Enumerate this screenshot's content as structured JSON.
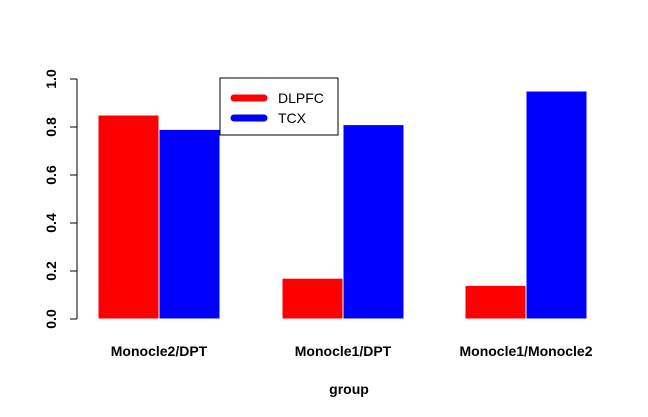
{
  "chart_data": {
    "type": "bar",
    "categories": [
      "Monocle2/DPT",
      "Monocle1/DPT",
      "Monocle1/Monocle2"
    ],
    "series": [
      {
        "name": "DLPFC",
        "values": [
          0.85,
          0.17,
          0.14
        ],
        "color": "#ff0000"
      },
      {
        "name": "TCX",
        "values": [
          0.79,
          0.81,
          0.95
        ],
        "color": "#0000ff"
      }
    ],
    "xlabel": "group",
    "ylabel": "",
    "ylim": [
      0,
      1
    ],
    "yticks": [
      "0.0",
      "0.2",
      "0.4",
      "0.6",
      "0.8",
      "1.0"
    ],
    "legend_position": "top-center",
    "grid": false
  }
}
